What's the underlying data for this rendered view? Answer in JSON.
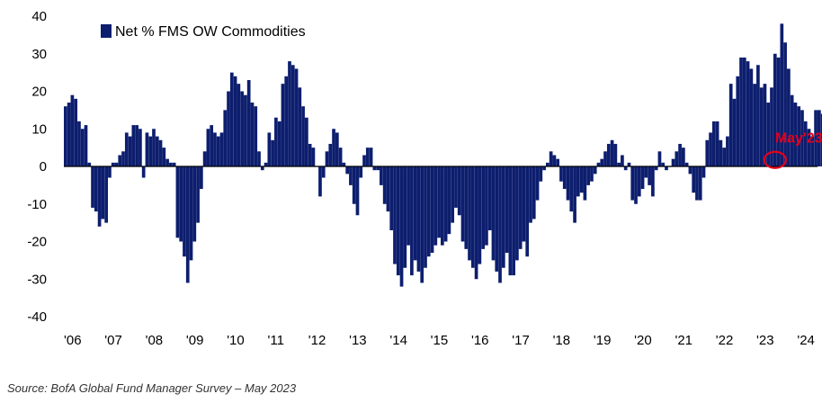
{
  "colors": {
    "bar": "#0d1e6e",
    "axis": "#000000",
    "annotation": "#e3001b"
  },
  "source": "Source: BofA Global Fund Manager Survey – May 2023",
  "chart_data": {
    "type": "bar",
    "title": "",
    "xlabel": "",
    "ylabel": "",
    "ylim": [
      -40,
      40
    ],
    "yticks": [
      40,
      30,
      20,
      10,
      0,
      -10,
      -20,
      -30,
      -40
    ],
    "xticks": [
      "'06",
      "'07",
      "'08",
      "'09",
      "'10",
      "'11",
      "'12",
      "'13",
      "'14",
      "'15",
      "'16",
      "'17",
      "'18",
      "'19",
      "'20",
      "'21",
      "'22",
      "'23",
      "'24"
    ],
    "xlim": [
      2006,
      2024.5
    ],
    "grid": false,
    "legend": {
      "placement": "top-left"
    },
    "annotation": {
      "text": "May'23",
      "x": 2023.37,
      "y": 1.5
    },
    "series": [
      {
        "name": "Net % FMS OW Commodities",
        "start_year": 2006,
        "interval": "monthly",
        "values": [
          16,
          17,
          19,
          18,
          12,
          10,
          11,
          1,
          -11,
          -12,
          -16,
          -14,
          -15,
          -3,
          1,
          1,
          3,
          4,
          9,
          8,
          11,
          11,
          10,
          -3,
          9,
          8,
          10,
          8,
          7,
          5,
          2,
          1,
          1,
          -19,
          -20,
          -24,
          -31,
          -25,
          -20,
          -15,
          -6,
          4,
          10,
          11,
          9,
          8,
          9,
          15,
          20,
          25,
          24,
          22,
          20,
          19,
          23,
          17,
          16,
          4,
          -1,
          1,
          9,
          7,
          13,
          12,
          22,
          24,
          28,
          27,
          26,
          21,
          16,
          13,
          6,
          5,
          0,
          -8,
          -3,
          4,
          6,
          10,
          9,
          5,
          1,
          -2,
          -5,
          -10,
          -13,
          -3,
          3,
          5,
          5,
          -1,
          -1,
          -5,
          -10,
          -12,
          -17,
          -26,
          -29,
          -32,
          -27,
          -21,
          -29,
          -25,
          -28,
          -31,
          -27,
          -24,
          -23,
          -21,
          -19,
          -21,
          -20,
          -18,
          -15,
          -11,
          -13,
          -20,
          -22,
          -25,
          -27,
          -30,
          -26,
          -22,
          -21,
          -17,
          -25,
          -28,
          -31,
          -27,
          -23,
          -29,
          -29,
          -25,
          -22,
          -20,
          -24,
          -15,
          -14,
          -9,
          -4,
          -1,
          1,
          4,
          3,
          2,
          -4,
          -6,
          -9,
          -12,
          -15,
          -8,
          -7,
          -9,
          -5,
          -4,
          -2,
          1,
          2,
          4,
          6,
          7,
          6,
          1,
          3,
          -1,
          1,
          -9,
          -10,
          -8,
          -6,
          -3,
          -5,
          -8,
          -1,
          4,
          1,
          -1,
          0,
          2,
          4,
          6,
          5,
          1,
          -2,
          -7,
          -9,
          -9,
          -3,
          7,
          9,
          12,
          12,
          7,
          5,
          8,
          22,
          18,
          24,
          29,
          29,
          28,
          26,
          22,
          27,
          21,
          22,
          17,
          21,
          30,
          29,
          38,
          33,
          26,
          19,
          17,
          16,
          15,
          12,
          10,
          8,
          15,
          15,
          14,
          13,
          1
        ]
      }
    ]
  }
}
